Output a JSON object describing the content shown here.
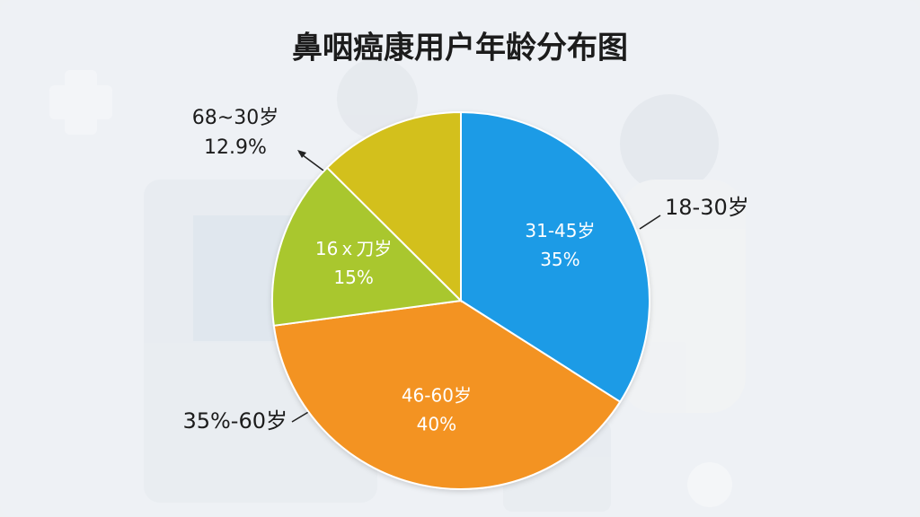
{
  "chart_data": {
    "type": "pie",
    "title": "鼻咽癌康用户年龄分布图",
    "categories": [
      "31-45岁",
      "46-60岁",
      "16ｘ刀岁",
      "68~30岁"
    ],
    "values": [
      35,
      40,
      15,
      12.9
    ],
    "value_labels": [
      "35%",
      "40%",
      "15%",
      "12.9%"
    ],
    "colors": [
      "#1a9be6",
      "#f39322",
      "#a9c72d",
      "#d3c01f"
    ],
    "annotations": [
      "18-30岁",
      "35%-60岁"
    ]
  }
}
